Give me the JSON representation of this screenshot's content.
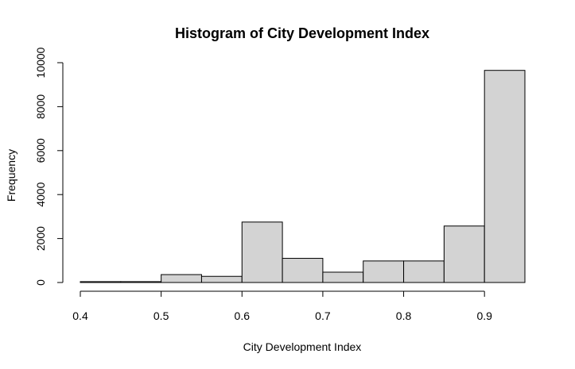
{
  "chart_data": {
    "type": "bar",
    "title": "Histogram of City Development Index",
    "xlabel": "City Development Index",
    "ylabel": "Frequency",
    "bins": [
      {
        "start": 0.4,
        "end": 0.45,
        "count": 40
      },
      {
        "start": 0.45,
        "end": 0.5,
        "count": 40
      },
      {
        "start": 0.5,
        "end": 0.55,
        "count": 360
      },
      {
        "start": 0.55,
        "end": 0.6,
        "count": 280
      },
      {
        "start": 0.6,
        "end": 0.65,
        "count": 2750
      },
      {
        "start": 0.65,
        "end": 0.7,
        "count": 1100
      },
      {
        "start": 0.7,
        "end": 0.75,
        "count": 470
      },
      {
        "start": 0.75,
        "end": 0.8,
        "count": 980
      },
      {
        "start": 0.8,
        "end": 0.85,
        "count": 980
      },
      {
        "start": 0.85,
        "end": 0.9,
        "count": 2570
      },
      {
        "start": 0.9,
        "end": 0.95,
        "count": 9650
      }
    ],
    "x_ticks": [
      "0.4",
      "0.5",
      "0.6",
      "0.7",
      "0.8",
      "0.9"
    ],
    "y_ticks": [
      "0",
      "2000",
      "4000",
      "6000",
      "8000",
      "10000"
    ],
    "xlim": [
      0.4,
      0.95
    ],
    "ylim": [
      0,
      10000
    ],
    "grid": false,
    "bar_color": "#d3d3d3",
    "edge_color": "#000000"
  }
}
